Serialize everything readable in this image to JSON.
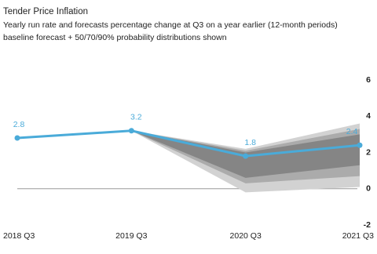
{
  "chart_data": {
    "type": "line",
    "title": "Tender Price Inflation",
    "subtitle": [
      "Yearly run rate and forecasts percentage change at Q3 on a year earlier (12-month periods)",
      "baseline forecast + 50/70/90% probability distributions shown"
    ],
    "categories": [
      "2018 Q3",
      "2019 Q3",
      "2020 Q3",
      "2021 Q3"
    ],
    "series": [
      {
        "color": "#4aabd9",
        "values": [
          2.8,
          3.2,
          1.8,
          2.4
        ]
      }
    ],
    "fan": [
      {
        "color": "#d2d2d2",
        "lower": [
          null,
          3.2,
          -0.2,
          0.1
        ],
        "upper": [
          null,
          3.2,
          2.2,
          3.6
        ]
      },
      {
        "color": "#ababab",
        "lower": [
          null,
          3.2,
          0.3,
          0.7
        ],
        "upper": [
          null,
          3.2,
          2.1,
          3.3
        ]
      },
      {
        "color": "#858585",
        "lower": [
          null,
          3.2,
          0.6,
          1.3
        ],
        "upper": [
          null,
          3.2,
          2.0,
          3.0
        ]
      }
    ],
    "ylim": [
      -2,
      6
    ],
    "yticks": [
      6,
      4,
      2,
      0,
      -2
    ],
    "zero_line": true
  }
}
